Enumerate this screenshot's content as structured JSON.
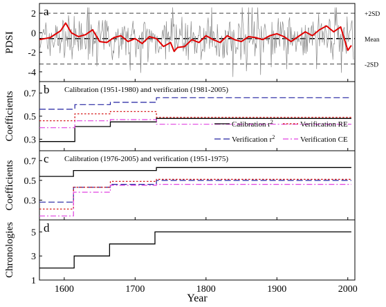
{
  "chart_data": [
    {
      "type": "line",
      "panel_label": "a",
      "ylabel": "PDSI",
      "ylim": [
        -5,
        3
      ],
      "yticks": [
        -4,
        -2,
        0,
        2
      ],
      "reference_lines": [
        {
          "label": "+2SD",
          "y": 2.0
        },
        {
          "label": "Mean",
          "y": -0.6
        },
        {
          "label": "-2SD",
          "y": -3.2
        }
      ],
      "series": [
        {
          "color": "#888888",
          "y_range": [
            -4.8,
            2.6
          ],
          "smooth": false
        },
        {
          "color": "#e00000",
          "smooth": true,
          "x": [
            1565,
            1580,
            1595,
            1602,
            1610,
            1620,
            1630,
            1640,
            1650,
            1660,
            1670,
            1680,
            1690,
            1700,
            1710,
            1720,
            1730,
            1740,
            1750,
            1755,
            1760,
            1770,
            1780,
            1790,
            1800,
            1810,
            1820,
            1830,
            1840,
            1850,
            1860,
            1870,
            1880,
            1890,
            1900,
            1910,
            1920,
            1930,
            1940,
            1950,
            1960,
            1970,
            1980,
            1990,
            2000,
            2005
          ],
          "y": [
            -0.7,
            -0.5,
            0.2,
            1.0,
            0.0,
            -0.4,
            -0.2,
            0.3,
            -0.9,
            -1.0,
            -0.5,
            -0.3,
            -0.9,
            -0.6,
            -1.1,
            -0.4,
            -0.6,
            -1.4,
            -1.0,
            -1.9,
            -1.5,
            -1.4,
            -0.7,
            -1.0,
            -0.3,
            -0.7,
            -1.0,
            -0.3,
            -0.7,
            -0.9,
            -0.4,
            -0.5,
            -0.7,
            -0.3,
            -0.1,
            -0.4,
            -0.9,
            -0.4,
            0.1,
            -0.3,
            0.3,
            0.7,
            0.1,
            0.6,
            -1.8,
            -1.3
          ]
        }
      ]
    },
    {
      "type": "line",
      "panel_label": "b",
      "title": "Calibration (1951-1980) and verification (1981-2005)",
      "ylabel": "Coefficients",
      "ylim": [
        0.2,
        0.8
      ],
      "yticks": [
        0.3,
        0.5,
        0.7
      ],
      "x_breaks": [
        1565,
        1615,
        1665,
        1730,
        2005
      ],
      "series": [
        {
          "name": "Calibration r²",
          "color": "#000000",
          "dash": "solid",
          "values": [
            0.28,
            0.41,
            0.45,
            0.48
          ]
        },
        {
          "name": "Verification r²",
          "color": "#2020a0",
          "dash": "long",
          "values": [
            0.56,
            0.6,
            0.62,
            0.66
          ]
        },
        {
          "name": "Verification RE",
          "color": "#d00000",
          "dash": "dot",
          "values": [
            0.46,
            0.52,
            0.54,
            0.49
          ]
        },
        {
          "name": "Verification CE",
          "color": "#e040e0",
          "dash": "dashdot",
          "values": [
            0.4,
            0.46,
            0.47,
            0.43
          ]
        }
      ]
    },
    {
      "type": "line",
      "panel_label": "c",
      "title": "Calibration (1976-2005) and verification (1951-1975)",
      "ylabel": "Coefficients",
      "ylim": [
        0.1,
        0.8
      ],
      "yticks": [
        0.3,
        0.5,
        0.7
      ],
      "x_breaks": [
        1565,
        1613,
        1665,
        1730,
        2005
      ],
      "series": [
        {
          "color": "#000000",
          "dash": "solid",
          "values": [
            0.54,
            0.6,
            0.6,
            0.63
          ]
        },
        {
          "color": "#2020a0",
          "dash": "long",
          "values": [
            0.28,
            0.43,
            0.46,
            0.5
          ]
        },
        {
          "color": "#d00000",
          "dash": "dot",
          "values": [
            0.21,
            0.43,
            0.49,
            0.51
          ]
        },
        {
          "color": "#e040e0",
          "dash": "dashdot",
          "values": [
            0.14,
            0.38,
            0.45,
            0.46
          ]
        }
      ]
    },
    {
      "type": "line",
      "panel_label": "d",
      "xlabel": "Year",
      "ylabel": "Chronologies",
      "ylim": [
        1,
        6
      ],
      "yticks": [
        1,
        3,
        5
      ],
      "xlim": [
        1565,
        2010
      ],
      "xticks": [
        1600,
        1700,
        1800,
        1900,
        2000
      ],
      "x_breaks": [
        1565,
        1614,
        1664,
        1728,
        2005
      ],
      "series": [
        {
          "color": "#000000",
          "dash": "solid",
          "values": [
            2,
            3,
            4,
            5
          ]
        }
      ]
    }
  ]
}
